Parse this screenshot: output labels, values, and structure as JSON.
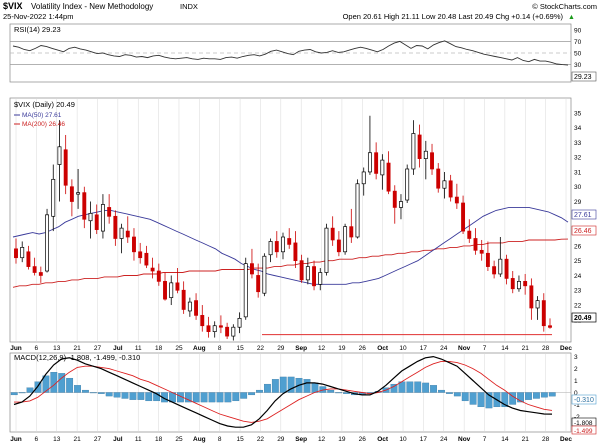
{
  "header": {
    "symbol": "$VIX",
    "name": "Volatility Index - New Methodology",
    "exchange": "INDX",
    "datetime": "25-Nov-2022 1:44pm",
    "quote": "Open 20.61  High 21.11  Low 20.48  Last 20.49  Chg +0.14 (+0.69%)",
    "quote_arrow": "▲",
    "watermark": "© StockCharts.com"
  },
  "colors": {
    "up_candle": "#000000",
    "down_candle": "#cc0000",
    "ma50": "#3a3a9a",
    "ma200": "#cc2222",
    "support_line": "#e03030",
    "macd_line": "#000000",
    "signal_line": "#dd2222",
    "histogram": "#4f9fd0",
    "grid": "#d8d8d8"
  },
  "chart_data": [
    {
      "type": "line",
      "panel": "rsi",
      "title": "RSI(14) 29.23",
      "ylim": [
        0,
        100
      ],
      "yticks": [
        10,
        30,
        50,
        70,
        90
      ],
      "reference_lines": [
        30,
        50,
        70
      ],
      "value_label": "29.23",
      "series": [
        {
          "name": "RSI(14)",
          "values": [
            62,
            60,
            56,
            54,
            58,
            63,
            61,
            58,
            55,
            52,
            58,
            60,
            57,
            55,
            52,
            49,
            50,
            47,
            45,
            44,
            47,
            46,
            43,
            44,
            42,
            45,
            46,
            43,
            41,
            40,
            41,
            42,
            40,
            39,
            41,
            40,
            40,
            39,
            42,
            43,
            41,
            44,
            46,
            47,
            45,
            48,
            53,
            55,
            52,
            49,
            47,
            53,
            55,
            56,
            52,
            50,
            51,
            54,
            51,
            52,
            55,
            58,
            60,
            58,
            55,
            52,
            56,
            62,
            67,
            70,
            64,
            58,
            63,
            62,
            57,
            64,
            68,
            71,
            66,
            61,
            59,
            56,
            54,
            51,
            48,
            46,
            44,
            42,
            40,
            38,
            42,
            37,
            35,
            39,
            36,
            36,
            34,
            31,
            30,
            29.23
          ]
        }
      ]
    },
    {
      "type": "candlestick",
      "panel": "price",
      "title": "$VIX (Daily) 20.49",
      "ylim": [
        19.5,
        36
      ],
      "yticks": [
        20,
        21,
        22,
        23,
        24,
        25,
        26,
        27,
        28,
        29,
        30,
        31,
        32,
        33,
        34,
        35
      ],
      "x_tick_labels": [
        "Jun",
        "6",
        "13",
        "21",
        "27",
        "Jul",
        "11",
        "18",
        "25",
        "Aug",
        "8",
        "15",
        "22",
        "29",
        "Sep",
        "12",
        "19",
        "26",
        "Oct",
        "10",
        "17",
        "24",
        "Nov",
        "7",
        "14",
        "21",
        "28",
        "Dec"
      ],
      "candles": [
        [
          25.8,
          26.5,
          24.8,
          25.2
        ],
        [
          25.2,
          26.3,
          24.9,
          25.9
        ],
        [
          25.6,
          26.0,
          24.4,
          24.6
        ],
        [
          24.6,
          25.2,
          24.0,
          24.2
        ],
        [
          24.2,
          24.6,
          23.5,
          24.0
        ],
        [
          24.3,
          28.5,
          24.2,
          28.1
        ],
        [
          28.0,
          31.5,
          27.0,
          30.5
        ],
        [
          31.5,
          34.5,
          29.0,
          32.7
        ],
        [
          32.5,
          33.5,
          29.5,
          30.1
        ],
        [
          30.0,
          30.5,
          28.0,
          29.0
        ],
        [
          29.5,
          31.2,
          28.5,
          29.6
        ],
        [
          29.6,
          30.0,
          27.2,
          27.8
        ],
        [
          27.7,
          29.0,
          26.5,
          28.2
        ],
        [
          28.1,
          28.8,
          26.8,
          27.1
        ],
        [
          27.0,
          29.5,
          26.5,
          28.8
        ],
        [
          28.6,
          29.5,
          27.5,
          28.0
        ],
        [
          28.0,
          28.4,
          26.0,
          26.5
        ],
        [
          26.5,
          27.5,
          25.5,
          27.2
        ],
        [
          27.0,
          28.0,
          26.2,
          26.6
        ],
        [
          26.6,
          27.2,
          25.0,
          25.6
        ],
        [
          25.6,
          26.2,
          24.8,
          25.2
        ],
        [
          25.5,
          26.0,
          24.5,
          24.7
        ],
        [
          24.5,
          25.2,
          23.8,
          24.3
        ],
        [
          24.3,
          24.8,
          23.3,
          23.6
        ],
        [
          23.6,
          24.2,
          22.3,
          22.4
        ],
        [
          22.5,
          24.0,
          22.0,
          23.5
        ],
        [
          23.5,
          24.5,
          22.8,
          23.0
        ],
        [
          23.0,
          23.6,
          21.4,
          21.7
        ],
        [
          21.6,
          22.5,
          21.2,
          22.2
        ],
        [
          22.3,
          22.8,
          21.0,
          21.3
        ],
        [
          21.3,
          22.0,
          20.2,
          20.6
        ],
        [
          20.6,
          21.2,
          19.8,
          20.2
        ],
        [
          20.2,
          20.9,
          19.8,
          20.6
        ],
        [
          20.6,
          21.3,
          20.1,
          20.5
        ],
        [
          20.5,
          20.8,
          19.7,
          19.9
        ],
        [
          19.9,
          20.7,
          19.6,
          20.5
        ],
        [
          20.5,
          21.5,
          20.1,
          21.1
        ],
        [
          21.2,
          25.2,
          21.0,
          24.8
        ],
        [
          24.8,
          25.8,
          23.8,
          24.1
        ],
        [
          24.0,
          24.8,
          22.5,
          22.9
        ],
        [
          22.8,
          25.5,
          22.6,
          25.3
        ],
        [
          25.4,
          26.5,
          24.9,
          26.3
        ],
        [
          26.3,
          27.0,
          25.2,
          25.6
        ],
        [
          25.6,
          26.9,
          25.1,
          26.6
        ],
        [
          26.5,
          27.2,
          25.8,
          26.1
        ],
        [
          26.2,
          27.0,
          24.5,
          25.0
        ],
        [
          25.0,
          25.4,
          23.5,
          23.7
        ],
        [
          23.7,
          25.2,
          23.4,
          24.6
        ],
        [
          24.6,
          25.0,
          23.0,
          23.3
        ],
        [
          23.4,
          24.5,
          23.0,
          24.2
        ],
        [
          24.2,
          27.5,
          24.0,
          27.2
        ],
        [
          27.2,
          28.0,
          26.0,
          26.4
        ],
        [
          26.4,
          27.0,
          25.3,
          25.6
        ],
        [
          25.6,
          27.5,
          25.4,
          27.3
        ],
        [
          27.3,
          28.5,
          26.2,
          26.6
        ],
        [
          26.6,
          30.5,
          26.5,
          30.2
        ],
        [
          30.2,
          31.3,
          29.4,
          31.0
        ],
        [
          31.0,
          34.8,
          30.8,
          32.3
        ],
        [
          32.3,
          33.0,
          30.5,
          30.9
        ],
        [
          30.8,
          32.2,
          29.8,
          31.8
        ],
        [
          31.6,
          32.4,
          29.5,
          29.7
        ],
        [
          29.7,
          30.1,
          27.5,
          28.6
        ],
        [
          28.6,
          29.5,
          27.8,
          29.0
        ],
        [
          29.1,
          31.5,
          28.9,
          31.2
        ],
        [
          31.2,
          34.5,
          30.8,
          33.6
        ],
        [
          33.5,
          34.2,
          31.3,
          31.9
        ],
        [
          31.9,
          33.1,
          30.5,
          32.4
        ],
        [
          32.3,
          32.9,
          30.8,
          31.2
        ],
        [
          31.2,
          31.6,
          29.6,
          29.9
        ],
        [
          29.9,
          31.0,
          29.2,
          30.4
        ],
        [
          30.4,
          30.8,
          29.0,
          29.3
        ],
        [
          29.3,
          30.2,
          28.5,
          28.9
        ],
        [
          28.9,
          29.4,
          26.8,
          27.0
        ],
        [
          27.0,
          27.8,
          26.2,
          26.5
        ],
        [
          26.5,
          27.2,
          25.4,
          25.7
        ],
        [
          25.7,
          26.4,
          25.0,
          25.5
        ],
        [
          25.5,
          26.3,
          24.3,
          24.6
        ],
        [
          24.6,
          25.0,
          23.8,
          24.1
        ],
        [
          24.1,
          26.6,
          23.9,
          25.1
        ],
        [
          25.1,
          25.4,
          23.4,
          23.8
        ],
        [
          23.8,
          24.3,
          22.8,
          23.1
        ],
        [
          23.1,
          24.0,
          22.9,
          23.6
        ],
        [
          23.6,
          24.1,
          22.7,
          23.3
        ],
        [
          23.3,
          23.8,
          21.0,
          21.8
        ],
        [
          21.8,
          22.6,
          21.0,
          22.3
        ],
        [
          22.3,
          22.8,
          20.2,
          20.6
        ],
        [
          20.6,
          21.1,
          20.4,
          20.49
        ]
      ],
      "series": [
        {
          "name": "MA(50) 27.61",
          "values": [
            26.6,
            26.7,
            26.8,
            26.9,
            26.8,
            26.9,
            27.1,
            27.3,
            27.6,
            27.8,
            28.0,
            28.1,
            28.2,
            28.3,
            28.4,
            28.4,
            28.3,
            28.2,
            28.1,
            28.0,
            27.9,
            27.8,
            27.6,
            27.4,
            27.2,
            27.0,
            26.8,
            26.6,
            26.4,
            26.2,
            26.0,
            25.8,
            25.5,
            25.3,
            25.1,
            24.8,
            24.6,
            24.4,
            24.3,
            24.1,
            24.0,
            23.9,
            23.8,
            23.7,
            23.6,
            23.5,
            23.4,
            23.4,
            23.4,
            23.4,
            23.4,
            23.4,
            23.5,
            23.5,
            23.6,
            23.7,
            23.8,
            24.0,
            24.2,
            24.4,
            24.6,
            24.8,
            25.0,
            25.3,
            25.6,
            25.9,
            26.2,
            26.5,
            26.8,
            27.1,
            27.4,
            27.7,
            28.0,
            28.2,
            28.4,
            28.5,
            28.6,
            28.6,
            28.6,
            28.6,
            28.5,
            28.4,
            28.3,
            28.1,
            27.9,
            27.61
          ]
        },
        {
          "name": "MA(200) 26.46",
          "values": [
            23.2,
            23.3,
            23.3,
            23.4,
            23.4,
            23.5,
            23.5,
            23.6,
            23.6,
            23.7,
            23.7,
            23.8,
            23.8,
            23.8,
            23.9,
            23.9,
            23.9,
            24.0,
            24.0,
            24.0,
            24.1,
            24.1,
            24.1,
            24.2,
            24.2,
            24.2,
            24.2,
            24.3,
            24.3,
            24.3,
            24.3,
            24.3,
            24.4,
            24.4,
            24.4,
            24.4,
            24.4,
            24.5,
            24.5,
            24.5,
            24.6,
            24.6,
            24.7,
            24.7,
            24.8,
            24.8,
            24.9,
            24.9,
            25.0,
            25.0,
            25.1,
            25.1,
            25.1,
            25.2,
            25.2,
            25.3,
            25.3,
            25.4,
            25.4,
            25.5,
            25.5,
            25.6,
            25.6,
            25.7,
            25.7,
            25.8,
            25.8,
            25.9,
            25.9,
            26.0,
            26.0,
            26.1,
            26.1,
            26.2,
            26.2,
            26.2,
            26.3,
            26.3,
            26.3,
            26.4,
            26.4,
            26.4,
            26.4,
            26.4,
            26.45,
            26.46
          ]
        }
      ],
      "support_level": 20.0,
      "value_labels": {
        "ma50": "27.61",
        "ma200": "26.46",
        "last": "20.49"
      }
    },
    {
      "type": "line",
      "panel": "macd",
      "title": "MACD(12,26,9) -1.808, -1.499, -0.310",
      "ylim": [
        -3.3,
        3.3
      ],
      "yticks": [
        3,
        2,
        1,
        0,
        -1,
        -2,
        -3
      ],
      "series": [
        {
          "name": "MACD",
          "values": [
            -1.0,
            -0.8,
            -0.3,
            0.5,
            1.5,
            2.3,
            2.8,
            2.9,
            2.7,
            2.4,
            2.2,
            2.0,
            1.7,
            1.4,
            1.1,
            0.8,
            0.5,
            0.2,
            -0.1,
            -0.5,
            -0.8,
            -1.1,
            -1.4,
            -1.7,
            -2.0,
            -2.3,
            -2.6,
            -2.8,
            -2.9,
            -2.9,
            -2.7,
            -2.2,
            -1.5,
            -0.7,
            -0.1,
            0.3,
            0.6,
            0.8,
            0.8,
            0.7,
            0.5,
            0.3,
            0.1,
            -0.1,
            -0.2,
            -0.2,
            0.1,
            0.6,
            1.2,
            1.8,
            2.2,
            2.6,
            2.9,
            3.0,
            2.8,
            2.5,
            2.2,
            1.6,
            1.0,
            0.4,
            -0.2,
            -0.6,
            -1.0,
            -1.3,
            -1.5,
            -1.6,
            -1.7,
            -1.8,
            -1.808
          ]
        },
        {
          "name": "Signal",
          "values": [
            -0.8,
            -0.8,
            -0.7,
            -0.4,
            0.1,
            0.6,
            1.2,
            1.7,
            2.1,
            2.2,
            2.2,
            2.1,
            2.0,
            1.8,
            1.6,
            1.4,
            1.1,
            0.9,
            0.6,
            0.3,
            0.0,
            -0.3,
            -0.6,
            -0.9,
            -1.2,
            -1.5,
            -1.8,
            -2.0,
            -2.2,
            -2.4,
            -2.5,
            -2.4,
            -2.2,
            -1.8,
            -1.4,
            -1.0,
            -0.6,
            -0.3,
            0.0,
            0.2,
            0.3,
            0.3,
            0.2,
            0.1,
            0.0,
            -0.1,
            0.0,
            0.2,
            0.5,
            0.9,
            1.3,
            1.7,
            2.1,
            2.4,
            2.6,
            2.6,
            2.5,
            2.3,
            2.0,
            1.6,
            1.1,
            0.6,
            0.2,
            -0.3,
            -0.7,
            -1.0,
            -1.2,
            -1.4,
            -1.499
          ]
        },
        {
          "name": "Histogram",
          "values": [
            -0.2,
            0.0,
            0.4,
            0.9,
            1.4,
            1.7,
            1.6,
            1.2,
            0.6,
            0.2,
            0.0,
            -0.1,
            -0.3,
            -0.4,
            -0.5,
            -0.6,
            -0.6,
            -0.7,
            -0.7,
            -0.8,
            -0.8,
            -0.8,
            -0.8,
            -0.8,
            -0.8,
            -0.8,
            -0.8,
            -0.8,
            -0.7,
            -0.5,
            -0.2,
            0.2,
            0.7,
            1.1,
            1.3,
            1.3,
            1.2,
            1.1,
            0.8,
            0.5,
            0.2,
            0.0,
            -0.1,
            -0.2,
            -0.2,
            -0.1,
            0.1,
            0.4,
            0.7,
            0.9,
            0.9,
            0.9,
            0.8,
            0.6,
            0.2,
            -0.1,
            -0.3,
            -0.7,
            -1.0,
            -1.2,
            -1.3,
            -1.2,
            -1.2,
            -1.0,
            -0.8,
            -0.6,
            -0.5,
            -0.4,
            -0.31
          ]
        }
      ],
      "value_labels": {
        "hist": "-0.310",
        "macd": "-1.808",
        "signal": "-1.499"
      }
    }
  ]
}
